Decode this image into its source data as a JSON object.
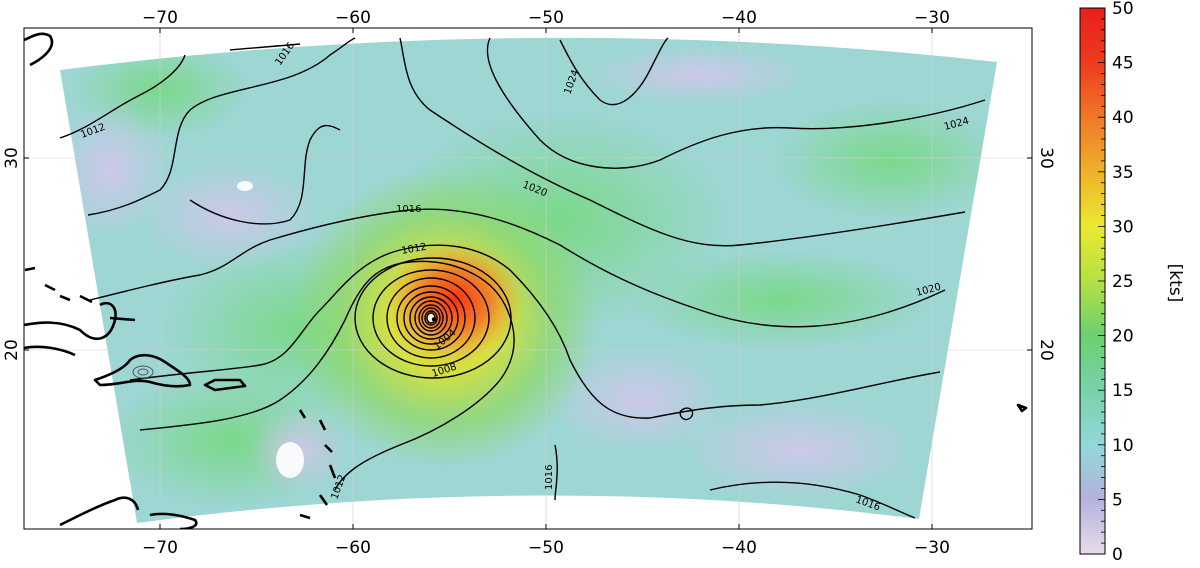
{
  "map": {
    "lon_ticks": [
      -70,
      -60,
      -50,
      -40,
      -30
    ],
    "lat_ticks": [
      20,
      30
    ],
    "lon_tick_labels": [
      "−70",
      "−60",
      "−50",
      "−40",
      "−30"
    ],
    "lat_tick_labels": [
      "20",
      "30"
    ],
    "contour_labels": [
      "1012",
      "1016",
      "1024",
      "1020",
      "1024",
      "1016",
      "1012",
      "1020",
      "1008",
      "1004",
      "1016",
      "1012",
      "1016"
    ],
    "storm_center": {
      "lon": -55.8,
      "lat": 21.6
    }
  },
  "colorbar": {
    "unit_label": "[kts]",
    "range": [
      0,
      50
    ],
    "ticks": [
      0,
      5,
      10,
      15,
      20,
      25,
      30,
      35,
      40,
      45,
      50
    ],
    "colors": [
      "#e8dcea",
      "#b4b2dc",
      "#92d8d8",
      "#78d2aa",
      "#6cd070",
      "#b4e044",
      "#eaea2e",
      "#f0b02c",
      "#f07828",
      "#ee3a1e",
      "#e8201a"
    ]
  }
}
